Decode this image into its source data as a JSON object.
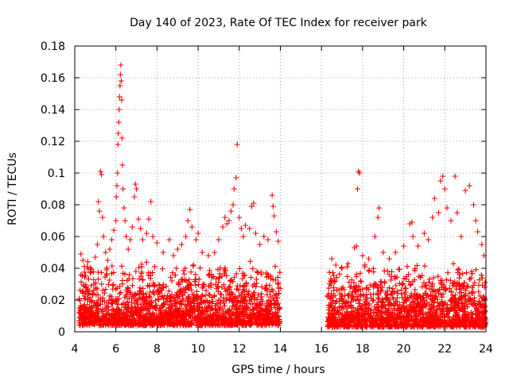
{
  "chart_data": {
    "type": "scatter",
    "title": "Day 140 of 2023, Rate Of TEC Index for receiver park",
    "xlabel": "GPS time / hours",
    "ylabel": "ROTI / TECUs",
    "xlim": [
      4,
      24
    ],
    "ylim": [
      0,
      0.18
    ],
    "xticks": [
      "4",
      "6",
      "8",
      "10",
      "12",
      "14",
      "16",
      "18",
      "20",
      "22",
      "24"
    ],
    "yticks": [
      "0",
      "0.02",
      "0.04",
      "0.06",
      "0.08",
      "0.1",
      "0.12",
      "0.14",
      "0.16",
      "0.18"
    ],
    "grid": true,
    "marker": "+",
    "color": "#ff0000",
    "series": [
      {
        "name": "ROTI",
        "points": [
          [
            4.3,
            0.049
          ],
          [
            4.4,
            0.045
          ],
          [
            4.6,
            0.041
          ],
          [
            4.8,
            0.038
          ],
          [
            5.0,
            0.047
          ],
          [
            5.1,
            0.055
          ],
          [
            5.15,
            0.082
          ],
          [
            5.2,
            0.076
          ],
          [
            5.25,
            0.101
          ],
          [
            5.3,
            0.099
          ],
          [
            5.35,
            0.072
          ],
          [
            5.4,
            0.06
          ],
          [
            5.5,
            0.05
          ],
          [
            5.6,
            0.045
          ],
          [
            5.7,
            0.052
          ],
          [
            5.8,
            0.058
          ],
          [
            5.9,
            0.064
          ],
          [
            6.0,
            0.07
          ],
          [
            6.02,
            0.085
          ],
          [
            6.05,
            0.092
          ],
          [
            6.08,
            0.1
          ],
          [
            6.1,
            0.118
          ],
          [
            6.12,
            0.125
          ],
          [
            6.14,
            0.132
          ],
          [
            6.16,
            0.14
          ],
          [
            6.18,
            0.148
          ],
          [
            6.2,
            0.155
          ],
          [
            6.22,
            0.162
          ],
          [
            6.24,
            0.168
          ],
          [
            6.26,
            0.158
          ],
          [
            6.28,
            0.146
          ],
          [
            6.3,
            0.122
          ],
          [
            6.32,
            0.105
          ],
          [
            6.35,
            0.09
          ],
          [
            6.4,
            0.078
          ],
          [
            6.45,
            0.07
          ],
          [
            6.5,
            0.06
          ],
          [
            6.6,
            0.052
          ],
          [
            6.7,
            0.058
          ],
          [
            6.8,
            0.066
          ],
          [
            6.9,
            0.085
          ],
          [
            6.95,
            0.093
          ],
          [
            7.0,
            0.09
          ],
          [
            7.1,
            0.071
          ],
          [
            7.2,
            0.065
          ],
          [
            7.3,
            0.058
          ],
          [
            7.5,
            0.062
          ],
          [
            7.6,
            0.071
          ],
          [
            7.7,
            0.082
          ],
          [
            7.8,
            0.06
          ],
          [
            8.0,
            0.056
          ],
          [
            8.3,
            0.05
          ],
          [
            8.6,
            0.058
          ],
          [
            8.8,
            0.048
          ],
          [
            9.0,
            0.052
          ],
          [
            9.2,
            0.055
          ],
          [
            9.4,
            0.06
          ],
          [
            9.5,
            0.07
          ],
          [
            9.6,
            0.077
          ],
          [
            9.7,
            0.066
          ],
          [
            9.9,
            0.058
          ],
          [
            10.0,
            0.062
          ],
          [
            10.2,
            0.05
          ],
          [
            10.5,
            0.048
          ],
          [
            10.8,
            0.05
          ],
          [
            11.0,
            0.058
          ],
          [
            11.2,
            0.066
          ],
          [
            11.3,
            0.072
          ],
          [
            11.4,
            0.068
          ],
          [
            11.5,
            0.07
          ],
          [
            11.6,
            0.076
          ],
          [
            11.7,
            0.08
          ],
          [
            11.75,
            0.09
          ],
          [
            11.85,
            0.097
          ],
          [
            11.9,
            0.118
          ],
          [
            12.0,
            0.072
          ],
          [
            12.1,
            0.065
          ],
          [
            12.2,
            0.06
          ],
          [
            12.3,
            0.067
          ],
          [
            12.5,
            0.065
          ],
          [
            12.6,
            0.079
          ],
          [
            12.7,
            0.081
          ],
          [
            12.8,
            0.062
          ],
          [
            13.0,
            0.055
          ],
          [
            13.2,
            0.06
          ],
          [
            13.4,
            0.058
          ],
          [
            13.6,
            0.086
          ],
          [
            13.65,
            0.079
          ],
          [
            13.7,
            0.073
          ],
          [
            13.8,
            0.063
          ],
          [
            13.9,
            0.057
          ],
          [
            16.5,
            0.046
          ],
          [
            16.7,
            0.042
          ],
          [
            17.0,
            0.04
          ],
          [
            17.3,
            0.043
          ],
          [
            17.6,
            0.053
          ],
          [
            17.7,
            0.054
          ],
          [
            17.75,
            0.09
          ],
          [
            17.8,
            0.101
          ],
          [
            17.85,
            0.1
          ],
          [
            18.0,
            0.048
          ],
          [
            18.3,
            0.046
          ],
          [
            18.6,
            0.06
          ],
          [
            18.75,
            0.072
          ],
          [
            18.8,
            0.078
          ],
          [
            19.0,
            0.05
          ],
          [
            19.3,
            0.046
          ],
          [
            19.6,
            0.05
          ],
          [
            20.0,
            0.054
          ],
          [
            20.3,
            0.068
          ],
          [
            20.4,
            0.069
          ],
          [
            20.45,
            0.06
          ],
          [
            20.7,
            0.054
          ],
          [
            21.0,
            0.062
          ],
          [
            21.2,
            0.058
          ],
          [
            21.4,
            0.072
          ],
          [
            21.5,
            0.084
          ],
          [
            21.7,
            0.075
          ],
          [
            21.8,
            0.095
          ],
          [
            21.9,
            0.098
          ],
          [
            22.0,
            0.09
          ],
          [
            22.1,
            0.078
          ],
          [
            22.3,
            0.07
          ],
          [
            22.5,
            0.098
          ],
          [
            22.6,
            0.075
          ],
          [
            22.8,
            0.06
          ],
          [
            23.0,
            0.089
          ],
          [
            23.2,
            0.092
          ],
          [
            23.4,
            0.08
          ],
          [
            23.5,
            0.07
          ],
          [
            23.6,
            0.063
          ],
          [
            23.8,
            0.055
          ],
          [
            23.9,
            0.048
          ]
        ],
        "dense_band": [
          {
            "x_range": [
              4.2,
              14.0
            ],
            "y_range": [
              0.004,
              0.045
            ],
            "count": 1900
          },
          {
            "x_range": [
              16.3,
              24.0
            ],
            "y_range": [
              0.003,
              0.045
            ],
            "count": 1500
          }
        ]
      }
    ]
  }
}
